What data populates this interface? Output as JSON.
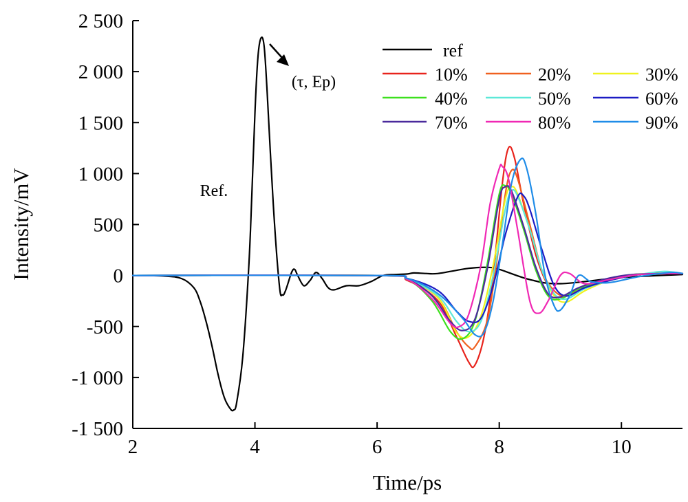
{
  "chart_data": {
    "type": "line",
    "xlabel": "Time/ps",
    "ylabel": "Intensity/mV",
    "xlim": [
      2,
      11
    ],
    "ylim": [
      -1500,
      2500
    ],
    "x_ticks": [
      2,
      4,
      6,
      8,
      10
    ],
    "x_tick_labels": [
      "2",
      "4",
      "6",
      "8",
      "10"
    ],
    "y_ticks": [
      -1500,
      -1000,
      -500,
      0,
      500,
      1000,
      1500,
      2000,
      2500
    ],
    "y_tick_labels": [
      "-1 500",
      "-1 000",
      "-500",
      "0",
      "500",
      "1 000",
      "1 500",
      "2 000",
      "2 500"
    ],
    "grid": false,
    "legend_position": "top-right",
    "annotations": [
      {
        "text": "(τ, Ep)",
        "x": 4.6,
        "y": 1850
      },
      {
        "text": "Ref.",
        "x": 3.1,
        "y": 780
      }
    ],
    "series": [
      {
        "name": "ref",
        "color": "#000000",
        "x": [
          2.0,
          2.5,
          2.8,
          3.0,
          3.1,
          3.2,
          3.3,
          3.4,
          3.5,
          3.6,
          3.65,
          3.7,
          3.8,
          3.9,
          3.95,
          4.0,
          4.05,
          4.1,
          4.15,
          4.2,
          4.3,
          4.4,
          4.45,
          4.5,
          4.6,
          4.65,
          4.7,
          4.8,
          4.9,
          5.0,
          5.1,
          5.2,
          5.3,
          5.5,
          5.7,
          5.9,
          6.1,
          6.3,
          6.5,
          6.6,
          6.8,
          7.0,
          7.5,
          7.8,
          8.0,
          8.5,
          9.0,
          10.0,
          11.0
        ],
        "y": [
          0,
          -5,
          -30,
          -120,
          -250,
          -450,
          -700,
          -980,
          -1200,
          -1310,
          -1320,
          -1250,
          -800,
          100,
          800,
          1600,
          2150,
          2330,
          2250,
          1800,
          700,
          -100,
          -190,
          -150,
          30,
          60,
          0,
          -100,
          -50,
          30,
          -30,
          -120,
          -140,
          -100,
          -100,
          -60,
          0,
          10,
          15,
          25,
          20,
          20,
          70,
          80,
          60,
          -40,
          -80,
          -20,
          10
        ]
      },
      {
        "name": "10%",
        "color": "#e8231c",
        "x": [
          2.0,
          6.0,
          6.5,
          7.0,
          7.3,
          7.5,
          7.6,
          7.75,
          7.9,
          8.05,
          8.15,
          8.25,
          8.4,
          8.6,
          8.8,
          9.0,
          9.3,
          9.6,
          10.0,
          10.5,
          11.0
        ],
        "y": [
          0,
          0,
          -50,
          -250,
          -600,
          -850,
          -880,
          -600,
          0,
          900,
          1250,
          1150,
          700,
          200,
          -100,
          -220,
          -130,
          -60,
          -10,
          20,
          20
        ]
      },
      {
        "name": "20%",
        "color": "#f0601f",
        "x": [
          2.0,
          6.0,
          6.5,
          7.0,
          7.3,
          7.5,
          7.6,
          7.8,
          7.95,
          8.1,
          8.2,
          8.3,
          8.5,
          8.7,
          8.9,
          9.1,
          9.4,
          9.8,
          10.3,
          11.0
        ],
        "y": [
          0,
          0,
          -40,
          -220,
          -550,
          -700,
          -700,
          -450,
          100,
          800,
          1030,
          950,
          500,
          50,
          -150,
          -200,
          -120,
          -50,
          10,
          20
        ]
      },
      {
        "name": "30%",
        "color": "#eff21e",
        "x": [
          2.0,
          6.0,
          6.5,
          7.0,
          7.3,
          7.5,
          7.7,
          7.9,
          8.1,
          8.2,
          8.3,
          8.5,
          8.7,
          8.9,
          9.1,
          9.4,
          9.8,
          10.3,
          11.0
        ],
        "y": [
          0,
          0,
          -40,
          -220,
          -560,
          -600,
          -400,
          100,
          750,
          870,
          800,
          450,
          50,
          -200,
          -260,
          -150,
          -50,
          10,
          20
        ]
      },
      {
        "name": "40%",
        "color": "#3de01e",
        "x": [
          2.0,
          6.0,
          6.5,
          6.9,
          7.2,
          7.4,
          7.6,
          7.8,
          8.0,
          8.1,
          8.2,
          8.4,
          8.6,
          8.8,
          9.0,
          9.3,
          9.7,
          10.2,
          11.0
        ],
        "y": [
          0,
          0,
          -40,
          -250,
          -550,
          -620,
          -450,
          100,
          800,
          880,
          800,
          450,
          50,
          -200,
          -230,
          -130,
          -50,
          10,
          20
        ]
      },
      {
        "name": "50%",
        "color": "#5ce8d8",
        "x": [
          2.0,
          6.0,
          6.5,
          7.0,
          7.3,
          7.5,
          7.7,
          7.9,
          8.1,
          8.2,
          8.3,
          8.5,
          8.7,
          8.9,
          9.1,
          9.4,
          9.8,
          10.3,
          10.7,
          11.0
        ],
        "y": [
          0,
          0,
          -40,
          -200,
          -450,
          -550,
          -450,
          0,
          650,
          830,
          780,
          450,
          50,
          -180,
          -230,
          -130,
          -50,
          10,
          40,
          20
        ]
      },
      {
        "name": "60%",
        "color": "#1c1cc4",
        "x": [
          2.0,
          6.0,
          6.5,
          7.0,
          7.3,
          7.5,
          7.7,
          7.9,
          8.1,
          8.3,
          8.4,
          8.5,
          8.7,
          8.9,
          9.1,
          9.4,
          9.8,
          10.3,
          11.0
        ],
        "y": [
          0,
          0,
          -30,
          -150,
          -350,
          -450,
          -420,
          -100,
          400,
          770,
          780,
          650,
          250,
          -100,
          -200,
          -120,
          -50,
          10,
          20
        ]
      },
      {
        "name": "70%",
        "color": "#4a2a9c",
        "x": [
          2.0,
          6.0,
          6.5,
          6.9,
          7.2,
          7.4,
          7.6,
          7.8,
          8.0,
          8.1,
          8.2,
          8.4,
          8.6,
          8.8,
          9.0,
          9.3,
          9.7,
          10.2,
          11.0
        ],
        "y": [
          0,
          0,
          -40,
          -200,
          -450,
          -540,
          -430,
          50,
          750,
          870,
          830,
          480,
          80,
          -180,
          -210,
          -120,
          -40,
          10,
          20
        ]
      },
      {
        "name": "80%",
        "color": "#f028b4",
        "x": [
          2.0,
          6.0,
          6.5,
          6.9,
          7.2,
          7.35,
          7.5,
          7.7,
          7.85,
          8.0,
          8.05,
          8.15,
          8.3,
          8.5,
          8.65,
          8.8,
          9.0,
          9.15,
          9.4,
          9.8,
          10.3,
          11.0
        ],
        "y": [
          0,
          0,
          -40,
          -230,
          -470,
          -500,
          -380,
          100,
          700,
          1050,
          1070,
          950,
          450,
          -250,
          -370,
          -250,
          0,
          20,
          -80,
          -40,
          10,
          20
        ]
      },
      {
        "name": "90%",
        "color": "#1f8ce8",
        "x": [
          2.0,
          6.0,
          6.5,
          7.0,
          7.4,
          7.6,
          7.75,
          7.9,
          8.05,
          8.2,
          8.35,
          8.45,
          8.6,
          8.75,
          8.9,
          9.0,
          9.15,
          9.3,
          9.5,
          9.8,
          10.3,
          10.8,
          11.0
        ],
        "y": [
          0,
          0,
          -30,
          -180,
          -420,
          -580,
          -560,
          -250,
          300,
          900,
          1140,
          1050,
          600,
          0,
          -300,
          -340,
          -200,
          0,
          -60,
          -70,
          -10,
          30,
          20
        ]
      }
    ]
  }
}
